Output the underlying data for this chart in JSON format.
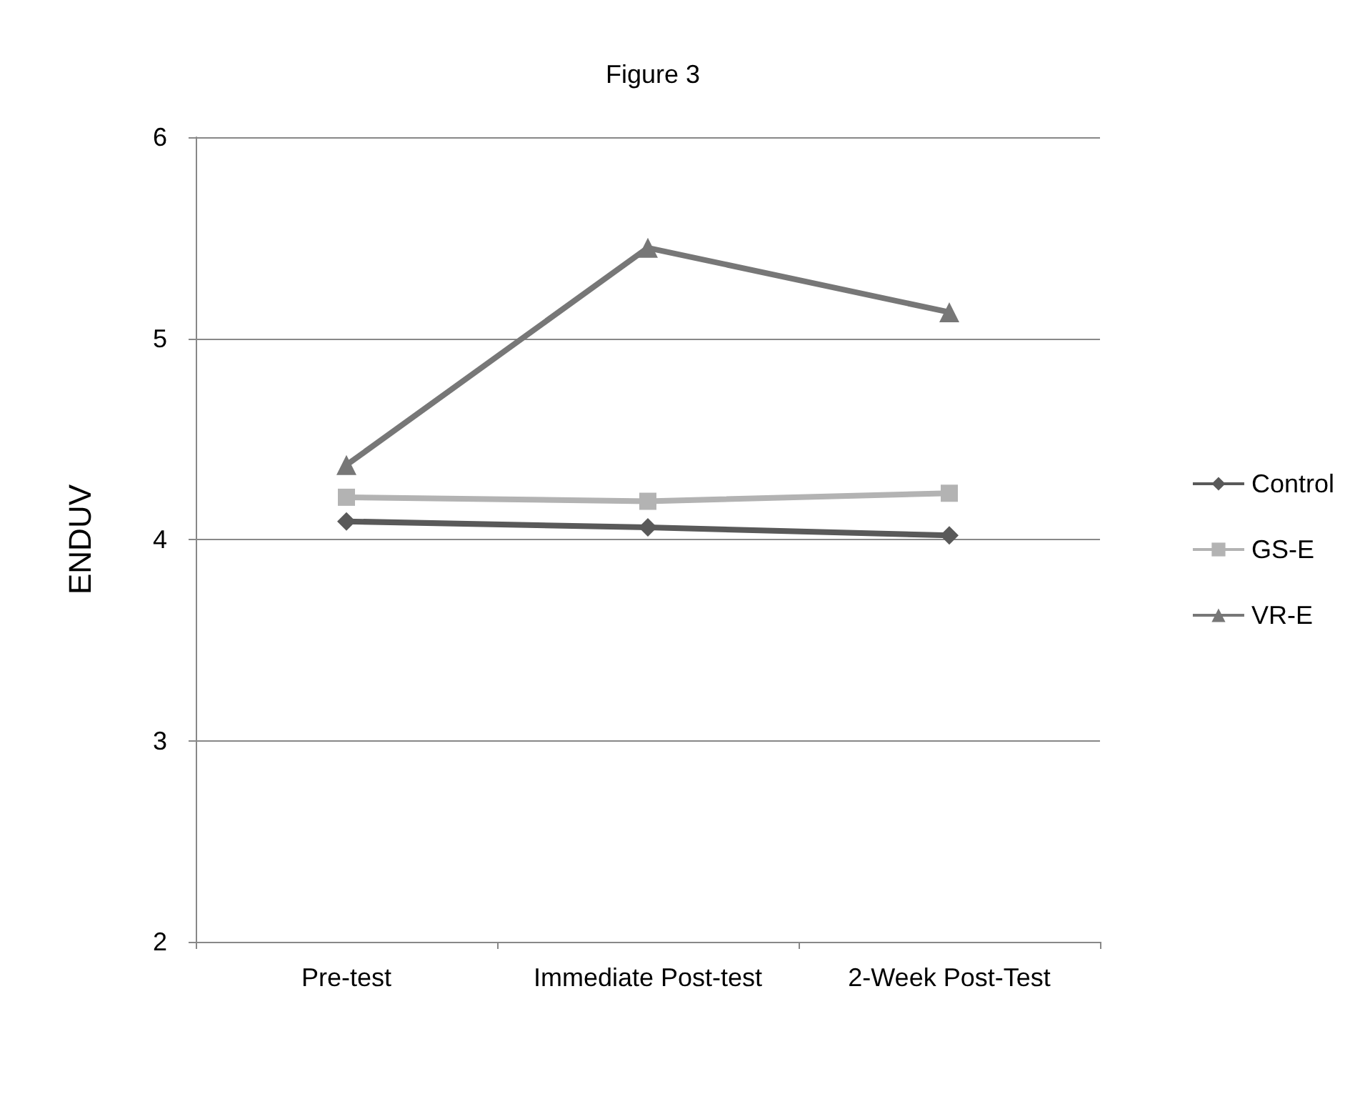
{
  "chart_data": {
    "type": "line",
    "title": "Figure 3",
    "ylabel": "ENDUV",
    "categories": [
      "Pre-test",
      "Immediate Post-test",
      "2-Week Post-Test"
    ],
    "series": [
      {
        "name": "Control",
        "color": "#595959",
        "marker": "diamond",
        "values": [
          4.09,
          4.06,
          4.02
        ]
      },
      {
        "name": "GS-E",
        "color": "#b3b3b3",
        "marker": "square",
        "values": [
          4.21,
          4.19,
          4.23
        ]
      },
      {
        "name": "VR-E",
        "color": "#777777",
        "marker": "triangle",
        "values": [
          4.37,
          5.45,
          5.13
        ]
      }
    ],
    "ylim": [
      2,
      6
    ],
    "yticks": [
      2,
      3,
      4,
      5,
      6
    ],
    "grid": "y",
    "legend": "right"
  }
}
